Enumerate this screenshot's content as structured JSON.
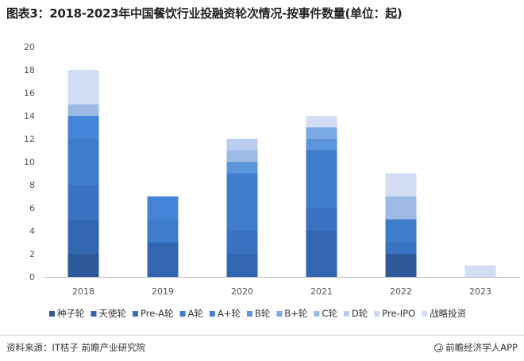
{
  "title": "图表3：2018-2023年中国餐饮行业投融资轮次情况-按事件数量(单位：起)",
  "source": "资料来源：IT桔子 前瞻产业研究院",
  "brand": "前瞻经济学人APP",
  "chart_data": {
    "type": "bar",
    "stacked": true,
    "categories": [
      "2018",
      "2019",
      "2020",
      "2021",
      "2022",
      "2023"
    ],
    "ylim": [
      0,
      20
    ],
    "yticks": [
      0,
      2,
      4,
      6,
      8,
      10,
      12,
      14,
      16,
      18,
      20
    ],
    "grid": false,
    "legend_position": "bottom",
    "series": [
      {
        "name": "种子轮",
        "color": "#2e5a9c",
        "values": [
          2,
          0,
          0,
          0,
          2,
          0
        ]
      },
      {
        "name": "天使轮",
        "color": "#3366b0",
        "values": [
          3,
          3,
          2,
          4,
          0,
          0
        ]
      },
      {
        "name": "Pre-A轮",
        "color": "#3a72c2",
        "values": [
          3,
          0,
          2,
          2,
          1,
          0
        ]
      },
      {
        "name": "A轮",
        "color": "#3e7ccc",
        "values": [
          4,
          2,
          5,
          5,
          2,
          0
        ]
      },
      {
        "name": "A+轮",
        "color": "#4585d8",
        "values": [
          2,
          2,
          0,
          0,
          0,
          0
        ]
      },
      {
        "name": "B轮",
        "color": "#5b95dc",
        "values": [
          0,
          0,
          1,
          1,
          0,
          0
        ]
      },
      {
        "name": "B+轮",
        "color": "#7ba9e2",
        "values": [
          0,
          0,
          0,
          1,
          0,
          0
        ]
      },
      {
        "name": "C轮",
        "color": "#9bbbe6",
        "values": [
          1,
          0,
          1,
          0,
          2,
          0
        ]
      },
      {
        "name": "D轮",
        "color": "#b9cdee",
        "values": [
          0,
          0,
          1,
          0,
          0,
          0
        ]
      },
      {
        "name": "Pre-IPO",
        "color": "#ccdaf2",
        "values": [
          0,
          0,
          0,
          0,
          0,
          0
        ]
      },
      {
        "name": "战略投资",
        "color": "#d3def4",
        "values": [
          3,
          0,
          0,
          1,
          2,
          1
        ]
      }
    ]
  }
}
